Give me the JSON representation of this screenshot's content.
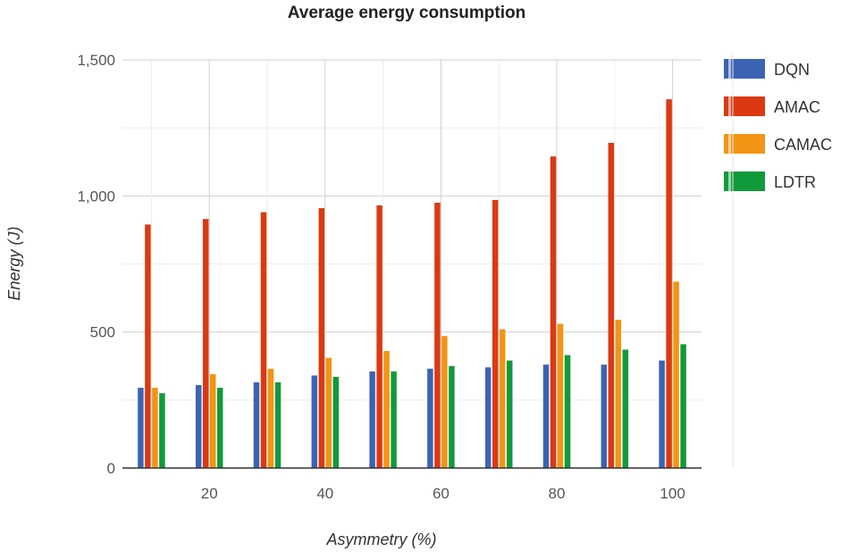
{
  "chart_data": {
    "type": "bar",
    "title": "Average energy consumption",
    "xlabel": "Asymmetry (%)",
    "ylabel": "Energy (J)",
    "categories": [
      10,
      20,
      30,
      40,
      50,
      60,
      70,
      80,
      90,
      100
    ],
    "x_tick_labels": [
      "20",
      "40",
      "60",
      "80",
      "100"
    ],
    "y_tick_labels": [
      "0",
      "500",
      "1,000",
      "1,500"
    ],
    "ylim": [
      0,
      1500
    ],
    "grid": true,
    "legend_position": "right",
    "series": [
      {
        "name": "DQN",
        "color": "#3c63b4",
        "values": [
          295,
          305,
          315,
          340,
          355,
          365,
          370,
          380,
          380,
          395
        ]
      },
      {
        "name": "AMAC",
        "color": "#dc3912",
        "values": [
          895,
          915,
          940,
          955,
          965,
          975,
          985,
          1145,
          1195,
          1355
        ]
      },
      {
        "name": "CAMAC",
        "color": "#f39414",
        "values": [
          295,
          345,
          365,
          405,
          430,
          485,
          510,
          530,
          545,
          685
        ]
      },
      {
        "name": "LDTR",
        "color": "#119a3b",
        "values": [
          275,
          295,
          315,
          335,
          355,
          375,
          395,
          415,
          435,
          455
        ]
      }
    ]
  }
}
